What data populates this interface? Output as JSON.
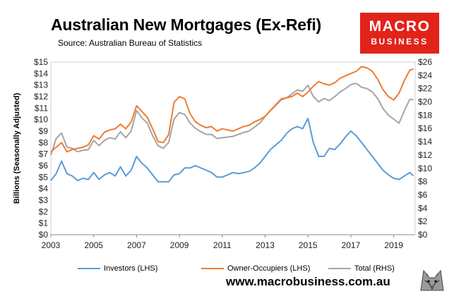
{
  "title": "Australian New Mortgages (Ex-Refi)",
  "subtitle": "Source: Australian Bureau of Statistics",
  "logo": {
    "line1": "MACRO",
    "line2": "BUSINESS",
    "color": "#e2231a"
  },
  "footer_url": "www.macrobusiness.com.au",
  "chart_data": {
    "type": "line",
    "title": "Australian New Mortgages (Ex-Refi)",
    "ylabel": "Billions (Seasonally Adjusted)",
    "ylim_left": [
      0,
      15
    ],
    "ylim_right": [
      0,
      26
    ],
    "xlim": [
      2003,
      2020
    ],
    "x_ticks": [
      "2003",
      "2005",
      "2007",
      "2009",
      "2011",
      "2013",
      "2015",
      "2017",
      "2019"
    ],
    "y_ticks_left": [
      "$0",
      "$1",
      "$2",
      "$3",
      "$4",
      "$5",
      "$6",
      "$7",
      "$8",
      "$9",
      "$10",
      "$11",
      "$12",
      "$13",
      "$14",
      "$15"
    ],
    "y_ticks_right": [
      "$0",
      "$2",
      "$4",
      "$6",
      "$8",
      "$10",
      "$12",
      "$14",
      "$16",
      "$18",
      "$20",
      "$22",
      "$24",
      "$26"
    ],
    "grid": false,
    "legend_position": "bottom",
    "x": [
      2003.0,
      2003.25,
      2003.5,
      2003.75,
      2004.0,
      2004.25,
      2004.5,
      2004.75,
      2005.0,
      2005.25,
      2005.5,
      2005.75,
      2006.0,
      2006.25,
      2006.5,
      2006.75,
      2007.0,
      2007.25,
      2007.5,
      2007.75,
      2008.0,
      2008.25,
      2008.5,
      2008.75,
      2009.0,
      2009.25,
      2009.5,
      2009.75,
      2010.0,
      2010.25,
      2010.5,
      2010.75,
      2011.0,
      2011.25,
      2011.5,
      2011.75,
      2012.0,
      2012.25,
      2012.5,
      2012.75,
      2013.0,
      2013.25,
      2013.5,
      2013.75,
      2014.0,
      2014.25,
      2014.5,
      2014.75,
      2015.0,
      2015.25,
      2015.5,
      2015.75,
      2016.0,
      2016.25,
      2016.5,
      2016.75,
      2017.0,
      2017.25,
      2017.5,
      2017.75,
      2018.0,
      2018.25,
      2018.5,
      2018.75,
      2019.0,
      2019.25,
      2019.5,
      2019.75,
      2019.92
    ],
    "series": [
      {
        "name": "Investors (LHS)",
        "axis": "left",
        "color": "#5b9bd5",
        "values": [
          4.7,
          5.3,
          6.4,
          5.3,
          5.1,
          4.7,
          4.9,
          4.8,
          5.4,
          4.8,
          5.2,
          5.4,
          5.1,
          5.9,
          5.1,
          5.6,
          6.8,
          6.2,
          5.8,
          5.2,
          4.6,
          4.6,
          4.6,
          5.2,
          5.3,
          5.8,
          5.8,
          6.0,
          5.8,
          5.6,
          5.4,
          5.0,
          5.0,
          5.2,
          5.4,
          5.3,
          5.4,
          5.5,
          5.8,
          6.2,
          6.8,
          7.4,
          7.8,
          8.2,
          8.8,
          9.2,
          9.4,
          9.2,
          10.1,
          8.0,
          6.8,
          6.8,
          7.5,
          7.4,
          7.9,
          8.5,
          9.0,
          8.6,
          8.0,
          7.4,
          6.8,
          6.2,
          5.6,
          5.2,
          4.9,
          4.8,
          5.1,
          5.4,
          5.1
        ]
      },
      {
        "name": "Owner-Occupiers (LHS)",
        "axis": "left",
        "color": "#ed7d31",
        "values": [
          7.2,
          7.6,
          8.0,
          7.2,
          7.4,
          7.5,
          7.6,
          7.8,
          8.6,
          8.3,
          8.9,
          9.1,
          9.2,
          9.6,
          9.2,
          9.8,
          11.2,
          10.7,
          10.2,
          9.2,
          8.1,
          8.0,
          8.7,
          11.5,
          12.0,
          11.8,
          10.5,
          9.8,
          9.5,
          9.3,
          9.4,
          9.0,
          9.2,
          9.1,
          9.0,
          9.2,
          9.4,
          9.5,
          9.8,
          10.0,
          10.3,
          10.8,
          11.3,
          11.8,
          11.9,
          12.0,
          12.3,
          12.0,
          12.4,
          12.9,
          13.3,
          13.1,
          13.0,
          13.2,
          13.6,
          13.8,
          14.0,
          14.2,
          14.6,
          14.5,
          14.2,
          13.5,
          12.6,
          12.0,
          11.7,
          12.3,
          13.4,
          14.3,
          14.4
        ]
      },
      {
        "name": "Total (RHS)",
        "axis": "right",
        "color": "#a5a5a5",
        "values": [
          12.0,
          14.5,
          15.3,
          13.2,
          13.0,
          12.5,
          12.7,
          12.8,
          14.2,
          13.4,
          14.2,
          14.6,
          14.4,
          15.5,
          14.6,
          15.6,
          18.7,
          17.6,
          16.8,
          14.9,
          13.4,
          13.0,
          13.9,
          17.4,
          18.4,
          18.1,
          16.8,
          16.0,
          15.5,
          15.1,
          15.1,
          14.5,
          14.6,
          14.7,
          14.8,
          15.1,
          15.4,
          15.6,
          16.2,
          16.8,
          17.8,
          18.7,
          19.5,
          20.3,
          20.6,
          21.2,
          21.8,
          21.6,
          22.5,
          20.8,
          20.0,
          20.5,
          20.2,
          20.8,
          21.5,
          22.0,
          22.6,
          22.8,
          22.2,
          22.0,
          21.5,
          20.5,
          19.0,
          18.0,
          17.4,
          16.8,
          18.7,
          20.4,
          20.3
        ]
      }
    ]
  }
}
